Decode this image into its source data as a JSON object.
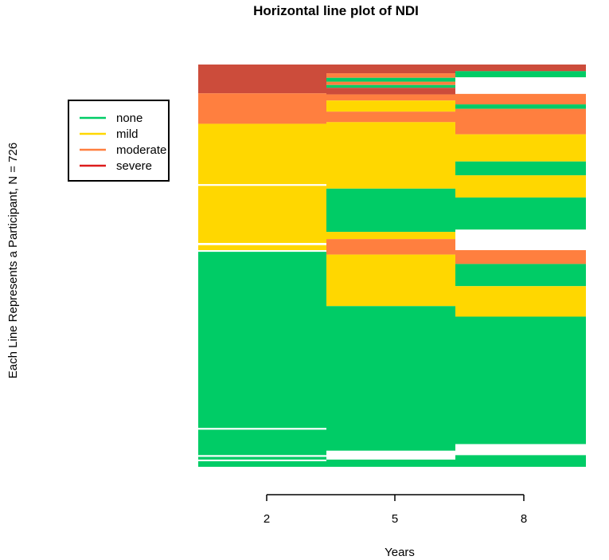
{
  "chart_data": {
    "type": "horizontal-line-plot",
    "title": "Horizontal line plot of NDI",
    "xlabel": "Years",
    "ylabel": "Each Line Represents a Participant, N = 726",
    "x_ticks": [
      "2",
      "5",
      "8"
    ],
    "n_participants": 726,
    "legend": {
      "position": "top-left",
      "entries": [
        {
          "key": "none",
          "label": "none"
        },
        {
          "key": "mild",
          "label": "mild"
        },
        {
          "key": "moderate",
          "label": "moderate"
        },
        {
          "key": "severe",
          "label": "severe"
        }
      ]
    },
    "colors": {
      "none": "#00cc66",
      "mild": "#ffd700",
      "moderate": "#ff7f3f",
      "severe": "#cc4c3b",
      "legend_severe_line": "#dd1c1c",
      "missing": "#ffffff"
    },
    "columns": [
      {
        "year": "2",
        "segments": [
          {
            "state": "severe",
            "from": 0,
            "to": 52
          },
          {
            "state": "moderate",
            "from": 52,
            "to": 107
          },
          {
            "state": "mild",
            "from": 107,
            "to": 216
          },
          {
            "state": "missing",
            "from": 216,
            "to": 219
          },
          {
            "state": "mild",
            "from": 219,
            "to": 322
          },
          {
            "state": "missing",
            "from": 322,
            "to": 326
          },
          {
            "state": "mild",
            "from": 326,
            "to": 335
          },
          {
            "state": "missing",
            "from": 335,
            "to": 338
          },
          {
            "state": "none",
            "from": 338,
            "to": 656
          },
          {
            "state": "missing",
            "from": 656,
            "to": 659
          },
          {
            "state": "none",
            "from": 659,
            "to": 705
          },
          {
            "state": "missing",
            "from": 705,
            "to": 708
          },
          {
            "state": "none",
            "from": 708,
            "to": 713
          },
          {
            "state": "missing",
            "from": 713,
            "to": 716
          },
          {
            "state": "none",
            "from": 716,
            "to": 726
          }
        ]
      },
      {
        "year": "5",
        "segments": [
          {
            "state": "severe",
            "from": 0,
            "to": 16
          },
          {
            "state": "moderate",
            "from": 16,
            "to": 24
          },
          {
            "state": "none",
            "from": 24,
            "to": 31
          },
          {
            "state": "moderate",
            "from": 31,
            "to": 37
          },
          {
            "state": "none",
            "from": 37,
            "to": 42
          },
          {
            "state": "severe",
            "from": 42,
            "to": 54
          },
          {
            "state": "moderate",
            "from": 54,
            "to": 65
          },
          {
            "state": "mild",
            "from": 65,
            "to": 85
          },
          {
            "state": "moderate",
            "from": 85,
            "to": 104
          },
          {
            "state": "mild",
            "from": 104,
            "to": 224
          },
          {
            "state": "none",
            "from": 224,
            "to": 302
          },
          {
            "state": "mild",
            "from": 302,
            "to": 315
          },
          {
            "state": "moderate",
            "from": 315,
            "to": 343
          },
          {
            "state": "mild",
            "from": 343,
            "to": 436
          },
          {
            "state": "none",
            "from": 436,
            "to": 697
          },
          {
            "state": "missing",
            "from": 697,
            "to": 713
          },
          {
            "state": "none",
            "from": 713,
            "to": 726
          }
        ]
      },
      {
        "year": "8",
        "segments": [
          {
            "state": "severe",
            "from": 0,
            "to": 12
          },
          {
            "state": "none",
            "from": 12,
            "to": 23
          },
          {
            "state": "missing",
            "from": 23,
            "to": 53
          },
          {
            "state": "moderate",
            "from": 53,
            "to": 72
          },
          {
            "state": "none",
            "from": 72,
            "to": 80
          },
          {
            "state": "moderate",
            "from": 80,
            "to": 126
          },
          {
            "state": "mild",
            "from": 126,
            "to": 175
          },
          {
            "state": "none",
            "from": 175,
            "to": 200
          },
          {
            "state": "mild",
            "from": 200,
            "to": 240
          },
          {
            "state": "none",
            "from": 240,
            "to": 298
          },
          {
            "state": "missing",
            "from": 298,
            "to": 335
          },
          {
            "state": "moderate",
            "from": 335,
            "to": 360
          },
          {
            "state": "none",
            "from": 360,
            "to": 400
          },
          {
            "state": "mild",
            "from": 400,
            "to": 455
          },
          {
            "state": "none",
            "from": 455,
            "to": 685
          },
          {
            "state": "missing",
            "from": 685,
            "to": 705
          },
          {
            "state": "none",
            "from": 705,
            "to": 726
          }
        ]
      }
    ]
  }
}
